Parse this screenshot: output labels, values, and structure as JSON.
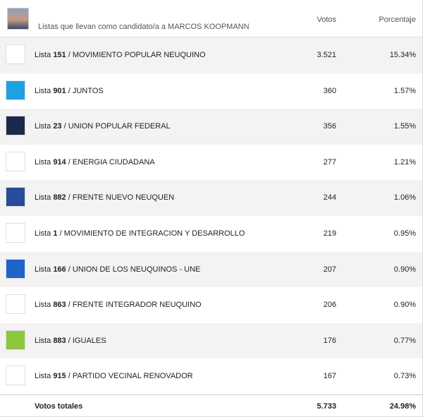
{
  "header": {
    "title": "Listas que llevan como candidato/a a MARCOS KOOPMANN",
    "votes": "Votos",
    "percent": "Porcentaje"
  },
  "row_prefix": "Lista",
  "separator": "/",
  "rows": [
    {
      "number": "151",
      "name": "MOVIMIENTO POPULAR NEUQUINO",
      "votes": "3.521",
      "percent": "15.34%"
    },
    {
      "number": "901",
      "name": "JUNTOS",
      "votes": "360",
      "percent": "1.57%"
    },
    {
      "number": "23",
      "name": "UNION POPULAR FEDERAL",
      "votes": "356",
      "percent": "1.55%"
    },
    {
      "number": "914",
      "name": "ENERGIA CIUDADANA",
      "votes": "277",
      "percent": "1.21%"
    },
    {
      "number": "882",
      "name": "FRENTE NUEVO NEUQUEN",
      "votes": "244",
      "percent": "1.06%"
    },
    {
      "number": "1",
      "name": "MOVIMIENTO DE INTEGRACION Y DESARROLLO",
      "votes": "219",
      "percent": "0.95%"
    },
    {
      "number": "166",
      "name": "UNION DE LOS NEUQUINOS - UNE",
      "votes": "207",
      "percent": "0.90%"
    },
    {
      "number": "863",
      "name": "FRENTE INTEGRADOR NEUQUINO",
      "votes": "206",
      "percent": "0.90%"
    },
    {
      "number": "883",
      "name": "IGUALES",
      "votes": "176",
      "percent": "0.77%"
    },
    {
      "number": "915",
      "name": "PARTIDO VECINAL RENOVADOR",
      "votes": "167",
      "percent": "0.73%"
    }
  ],
  "footer": {
    "label": "Votos totales",
    "votes": "5.733",
    "percent": "24.98%"
  }
}
